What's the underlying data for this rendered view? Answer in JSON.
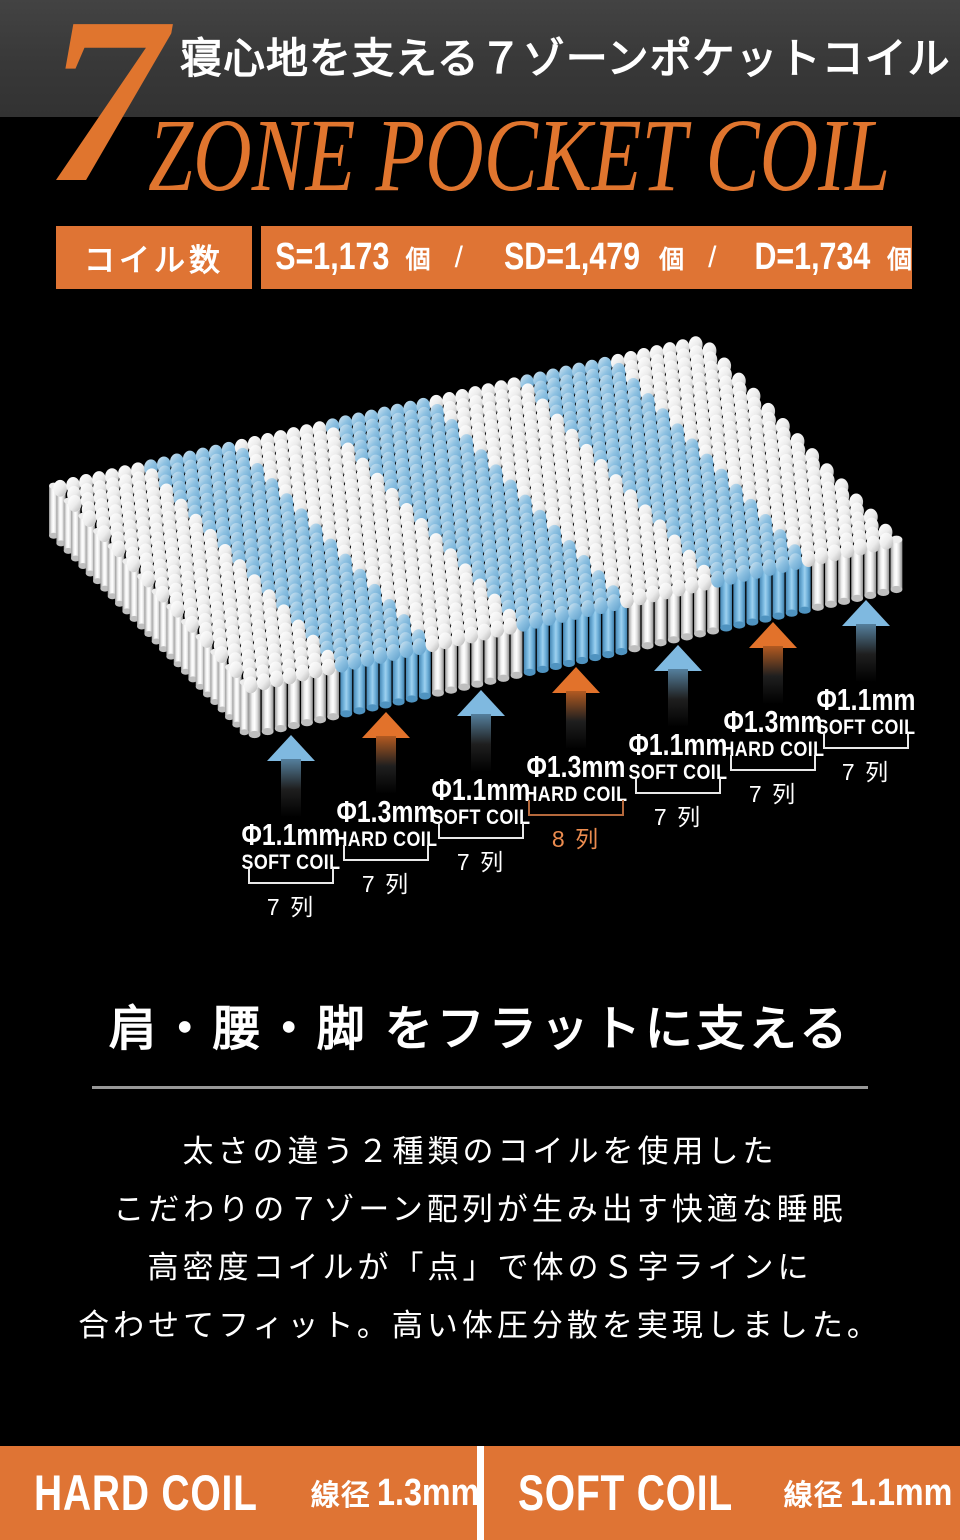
{
  "header": {
    "big_number": "7",
    "jp_title": "寝心地を支える７ゾーンポケットコイル",
    "en_title": "ZONE POCKET COIL"
  },
  "coil_count": {
    "label": "コイル数",
    "separator": "/",
    "items": [
      {
        "eq": "S=1,173",
        "unit": "個"
      },
      {
        "eq": "SD=1,479",
        "unit": "個"
      },
      {
        "eq": "D=1,734",
        "unit": "個"
      }
    ]
  },
  "illustration": {
    "rows_depth": 27,
    "colors": {
      "soft_zone_coil": "#ffffff",
      "hard_zone_coil": "#7fbde2",
      "arrow_soft": "#7fb9e0",
      "arrow_hard": "#e2722b"
    },
    "zones": [
      {
        "diameter": "Φ1.1mm",
        "type": "SOFT COIL",
        "rows_label": "7 列",
        "columns": 7,
        "coil": "soft",
        "highlight": false
      },
      {
        "diameter": "Φ1.3mm",
        "type": "HARD COIL",
        "rows_label": "7 列",
        "columns": 7,
        "coil": "hard",
        "highlight": false
      },
      {
        "diameter": "Φ1.1mm",
        "type": "SOFT COIL",
        "rows_label": "7 列",
        "columns": 7,
        "coil": "soft",
        "highlight": false
      },
      {
        "diameter": "Φ1.3mm",
        "type": "HARD COIL",
        "rows_label": "8 列",
        "columns": 8,
        "coil": "hard",
        "highlight": true
      },
      {
        "diameter": "Φ1.1mm",
        "type": "SOFT COIL",
        "rows_label": "7 列",
        "columns": 7,
        "coil": "soft",
        "highlight": false
      },
      {
        "diameter": "Φ1.3mm",
        "type": "HARD COIL",
        "rows_label": "7 列",
        "columns": 7,
        "coil": "hard",
        "highlight": false
      },
      {
        "diameter": "Φ1.1mm",
        "type": "SOFT COIL",
        "rows_label": "7 列",
        "columns": 7,
        "coil": "soft",
        "highlight": false
      }
    ]
  },
  "support": {
    "heading": "肩・腰・脚 をフラットに支える",
    "description_lines": [
      "太さの違う２種類のコイルを使用した",
      "こだわりの７ゾーン配列が生み出す快適な睡眠",
      "高密度コイルが「点」で体のＳ字ラインに",
      "合わせてフィット。高い体圧分散を実現しました。"
    ]
  },
  "legend": {
    "hard": {
      "name": "HARD COIL",
      "spec_label": "線径",
      "spec_value": "1.3mm"
    },
    "soft": {
      "name": "SOFT COIL",
      "spec_label": "線径",
      "spec_value": "1.1mm"
    }
  },
  "colors": {
    "accent_orange": "#df7434",
    "background": "#000000"
  }
}
